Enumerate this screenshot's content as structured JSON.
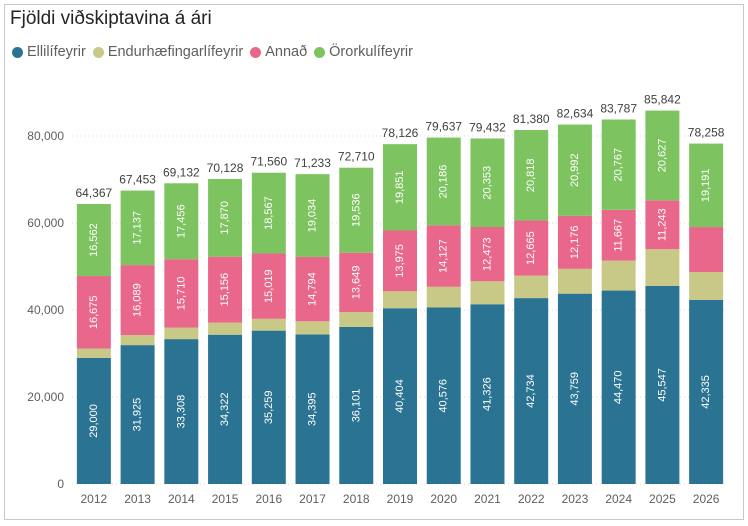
{
  "title": "Fjöldi viðskiptavina á ári",
  "legend": [
    {
      "label": "Ellilífeyrir",
      "color": "#2b7392"
    },
    {
      "label": "Endurhæfingarlífeyrir",
      "color": "#c9c987"
    },
    {
      "label": "Annað",
      "color": "#e9678a"
    },
    {
      "label": "Örorkulífeyrir",
      "color": "#7dc460"
    }
  ],
  "chart_data": {
    "type": "bar",
    "stacked": true,
    "title": "Fjöldi viðskiptavina á ári",
    "categories": [
      "2012",
      "2013",
      "2014",
      "2015",
      "2016",
      "2017",
      "2018",
      "2019",
      "2020",
      "2021",
      "2022",
      "2023",
      "2024",
      "2025",
      "2026"
    ],
    "series": [
      {
        "name": "Ellilífeyrir",
        "color": "#2b7392",
        "values": [
          29000,
          31925,
          33308,
          34322,
          35259,
          34395,
          36101,
          40404,
          40576,
          41326,
          42734,
          43759,
          44470,
          45547,
          42335
        ],
        "labels": [
          "29,000",
          "31,925",
          "33,308",
          "34,322",
          "35,259",
          "34,395",
          "36,101",
          "40,404",
          "40,576",
          "41,326",
          "42,734",
          "43,759",
          "44,470",
          "45,547",
          "42,335"
        ]
      },
      {
        "name": "Endurhæfingarlífeyrir",
        "color": "#c9c987",
        "values": [
          2130,
          2302,
          2658,
          2780,
          2715,
          3010,
          3424,
          3896,
          4748,
          5280,
          5163,
          5707,
          6883,
          8425,
          6391
        ]
      },
      {
        "name": "Annað",
        "color": "#e9678a",
        "values": [
          16675,
          16089,
          15710,
          15156,
          15019,
          14794,
          13649,
          13975,
          14127,
          12473,
          12665,
          12176,
          11667,
          11243,
          10341
        ],
        "labels": [
          "16,675",
          "16,089",
          "15,710",
          "15,156",
          "15,019",
          "14,794",
          "13,649",
          "13,975",
          "14,127",
          "12,473",
          "12,665",
          "12,176",
          "11,667",
          "11,243",
          ""
        ]
      },
      {
        "name": "Örorkulífeyrir",
        "color": "#7dc460",
        "values": [
          16562,
          17137,
          17456,
          17870,
          18567,
          19034,
          19536,
          19851,
          20186,
          20353,
          20818,
          20992,
          20767,
          20627,
          19191
        ],
        "labels": [
          "16,562",
          "17,137",
          "17,456",
          "17,870",
          "18,567",
          "19,034",
          "19,536",
          "19,851",
          "20,186",
          "20,353",
          "20,818",
          "20,992",
          "20,767",
          "20,627",
          "19,191"
        ]
      }
    ],
    "totals": [
      64367,
      67453,
      69132,
      70128,
      71560,
      71233,
      72710,
      78126,
      79637,
      79432,
      81380,
      82634,
      83787,
      85842,
      78258
    ],
    "total_labels": [
      "64,367",
      "67,453",
      "69,132",
      "70,128",
      "71,560",
      "71,233",
      "72,710",
      "78,126",
      "79,637",
      "79,432",
      "81,380",
      "82,634",
      "83,787",
      "85,842",
      "78,258"
    ],
    "ylim": [
      0,
      100000
    ],
    "yticks": [
      0,
      20000,
      40000,
      60000,
      80000
    ],
    "ytick_labels": [
      "0",
      "20,000",
      "40,000",
      "60,000",
      "80,000"
    ],
    "grid": true,
    "legend_position": "top-left"
  }
}
